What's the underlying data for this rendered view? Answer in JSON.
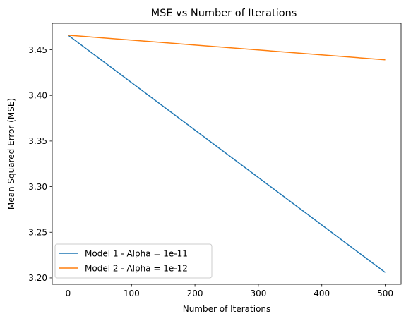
{
  "chart_data": {
    "type": "line",
    "title": "MSE vs Number of Iterations",
    "xlabel": "Number of Iterations",
    "ylabel": "Mean Squared Error (MSE)",
    "xlim": [
      -25,
      525
    ],
    "ylim": [
      3.193,
      3.479
    ],
    "xticks": [
      0,
      100,
      200,
      300,
      400,
      500
    ],
    "xtick_labels": [
      "0",
      "100",
      "200",
      "300",
      "400",
      "500"
    ],
    "yticks": [
      3.2,
      3.25,
      3.3,
      3.35,
      3.4,
      3.45
    ],
    "ytick_labels": [
      "3.20",
      "3.25",
      "3.30",
      "3.35",
      "3.40",
      "3.45"
    ],
    "grid": false,
    "legend_position": "lower-left",
    "series": [
      {
        "name": "Model 1 - Alpha = 1e-11",
        "color": "#1f77b4",
        "x": [
          0,
          500
        ],
        "y": [
          3.466,
          3.206
        ]
      },
      {
        "name": "Model 2 - Alpha = 1e-12",
        "color": "#ff7f0e",
        "x": [
          0,
          500
        ],
        "y": [
          3.466,
          3.439
        ]
      }
    ]
  }
}
